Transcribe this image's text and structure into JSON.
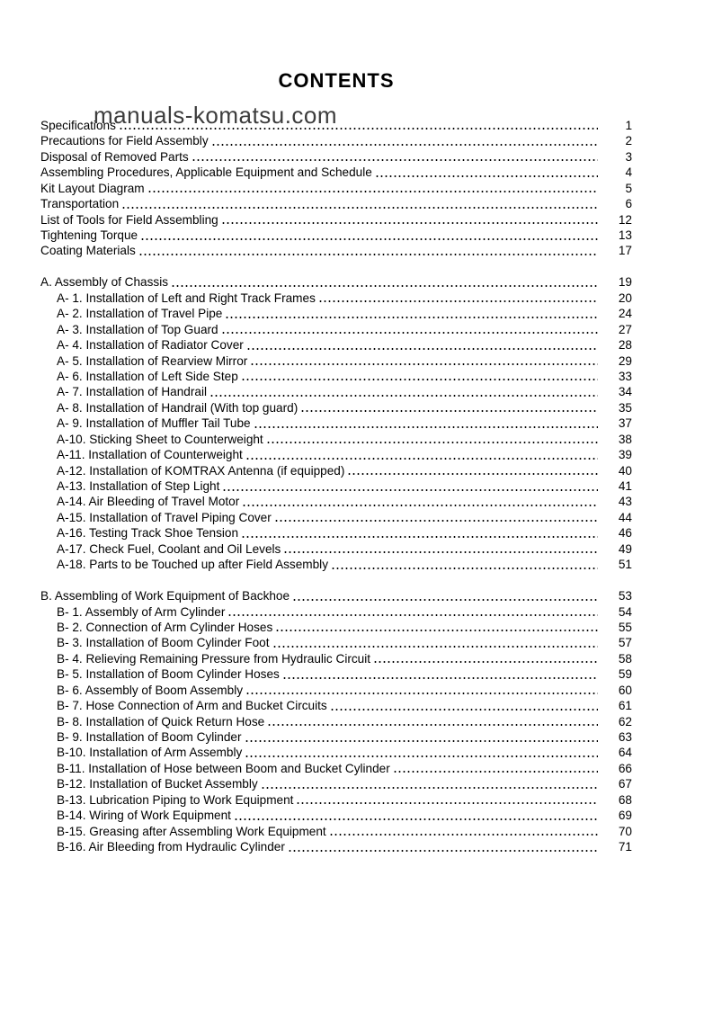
{
  "page": {
    "title": "CONTENTS",
    "watermark": "manuals-komatsu.com"
  },
  "colors": {
    "background": "#ffffff",
    "text": "#000000",
    "watermark": "#3c3c3c"
  },
  "toc": {
    "front_matter": [
      {
        "label": "Specifications",
        "page": "1"
      },
      {
        "label": "Precautions for Field Assembly",
        "page": "2"
      },
      {
        "label": "Disposal of Removed Parts",
        "page": "3"
      },
      {
        "label": "Assembling Procedures, Applicable Equipment and Schedule",
        "page": "4"
      },
      {
        "label": "Kit Layout Diagram",
        "page": "5"
      },
      {
        "label": "Transportation",
        "page": "6"
      },
      {
        "label": "List of Tools for Field Assembling",
        "page": "12"
      },
      {
        "label": "Tightening Torque",
        "page": "13"
      },
      {
        "label": "Coating Materials",
        "page": "17"
      }
    ],
    "section_a": {
      "label": "A. Assembly of Chassis",
      "page": "19",
      "items": [
        {
          "label": "A- 1. Installation of Left and Right Track Frames",
          "page": "20"
        },
        {
          "label": "A- 2. Installation of Travel Pipe",
          "page": "24"
        },
        {
          "label": "A- 3. Installation of Top Guard",
          "page": "27"
        },
        {
          "label": "A- 4. Installation of Radiator Cover",
          "page": "28"
        },
        {
          "label": "A- 5. Installation of Rearview Mirror",
          "page": "29"
        },
        {
          "label": "A- 6. Installation of Left Side Step",
          "page": "33"
        },
        {
          "label": "A- 7. Installation of Handrail",
          "page": "34"
        },
        {
          "label": "A- 8. Installation of Handrail (With top guard)",
          "page": "35"
        },
        {
          "label": "A- 9. Installation of Muffler Tail Tube",
          "page": "37"
        },
        {
          "label": "A-10. Sticking Sheet to Counterweight",
          "page": "38"
        },
        {
          "label": "A-11. Installation of Counterweight",
          "page": "39"
        },
        {
          "label": "A-12. Installation of KOMTRAX Antenna (if equipped)",
          "page": "40"
        },
        {
          "label": "A-13. Installation of Step Light",
          "page": "41"
        },
        {
          "label": "A-14. Air Bleeding of Travel Motor",
          "page": "43"
        },
        {
          "label": "A-15. Installation of Travel Piping Cover",
          "page": "44"
        },
        {
          "label": "A-16. Testing Track Shoe Tension",
          "page": "46"
        },
        {
          "label": "A-17. Check Fuel, Coolant and Oil Levels",
          "page": "49"
        },
        {
          "label": "A-18. Parts to be Touched up after Field Assembly",
          "page": "51"
        }
      ]
    },
    "section_b": {
      "label": "B. Assembling of Work Equipment of Backhoe",
      "page": "53",
      "items": [
        {
          "label": "B- 1. Assembly of Arm Cylinder",
          "page": "54"
        },
        {
          "label": "B- 2. Connection of Arm Cylinder Hoses",
          "page": "55"
        },
        {
          "label": "B- 3. Installation of Boom Cylinder Foot",
          "page": "57"
        },
        {
          "label": "B- 4. Relieving Remaining Pressure from Hydraulic Circuit",
          "page": "58"
        },
        {
          "label": "B- 5. Installation of Boom Cylinder Hoses",
          "page": "59"
        },
        {
          "label": "B- 6. Assembly of Boom Assembly",
          "page": "60"
        },
        {
          "label": "B- 7. Hose Connection of Arm and Bucket Circuits",
          "page": "61"
        },
        {
          "label": "B- 8. Installation of Quick Return Hose",
          "page": "62"
        },
        {
          "label": "B- 9. Installation of Boom Cylinder",
          "page": "63"
        },
        {
          "label": "B-10. Installation of Arm Assembly",
          "page": "64"
        },
        {
          "label": "B-11. Installation of Hose between Boom and Bucket Cylinder",
          "page": "66"
        },
        {
          "label": "B-12. Installation of Bucket Assembly",
          "page": "67"
        },
        {
          "label": "B-13. Lubrication Piping to Work Equipment",
          "page": "68"
        },
        {
          "label": "B-14. Wiring of Work Equipment",
          "page": "69"
        },
        {
          "label": "B-15. Greasing after Assembling Work Equipment",
          "page": "70"
        },
        {
          "label": "B-16. Air Bleeding from Hydraulic Cylinder",
          "page": "71"
        }
      ]
    }
  }
}
